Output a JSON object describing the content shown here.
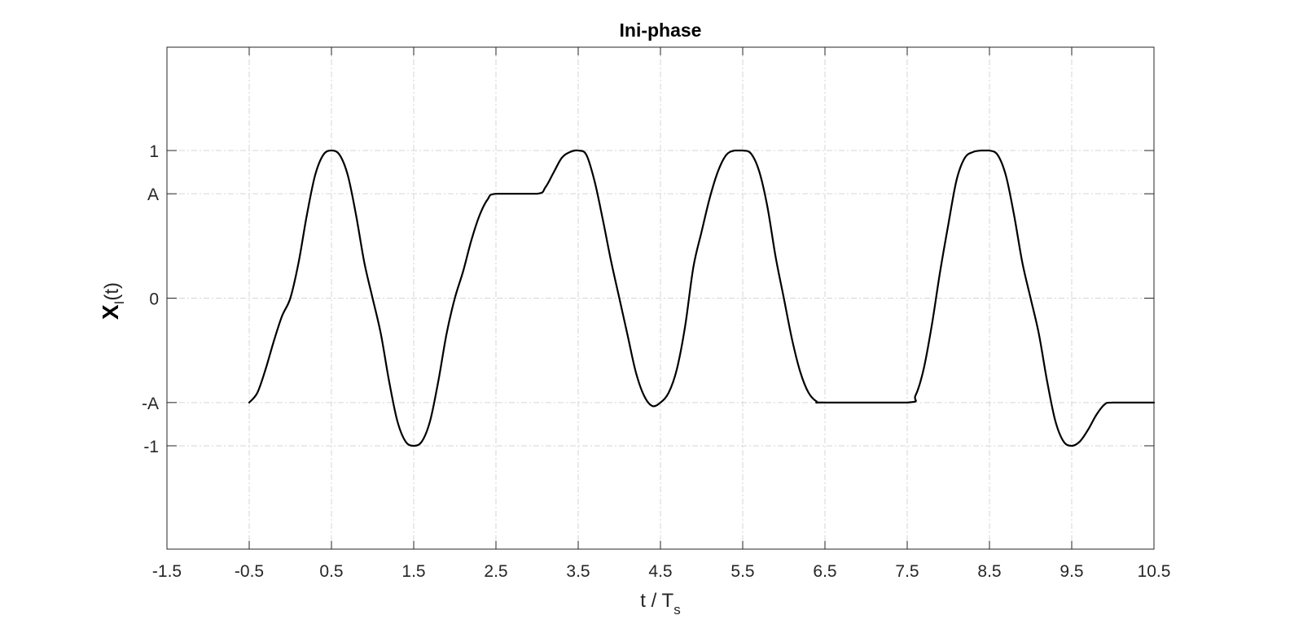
{
  "chart_data": {
    "type": "line",
    "title": "Ini-phase",
    "xlabel": {
      "main": "t / T",
      "sub": "s"
    },
    "ylabel": {
      "main": "X",
      "sub": "I",
      "suffix": "(t)"
    },
    "xlim": [
      -1.5,
      10.5
    ],
    "ylim": [
      -1.7,
      1.7
    ],
    "xticks": [
      -1.5,
      -0.5,
      0.5,
      1.5,
      2.5,
      3.5,
      4.5,
      5.5,
      6.5,
      7.5,
      8.5,
      9.5,
      10.5
    ],
    "xtick_labels": [
      "-1.5",
      "-0.5",
      "0.5",
      "1.5",
      "2.5",
      "3.5",
      "4.5",
      "5.5",
      "6.5",
      "7.5",
      "8.5",
      "9.5",
      "10.5"
    ],
    "yticks": [
      -1,
      -0.7071,
      0,
      0.7071,
      1
    ],
    "ytick_labels": [
      "-1",
      "-A",
      "0",
      "A",
      "1"
    ],
    "grid": true,
    "color": "#000000",
    "series": [
      {
        "x": [
          -0.5,
          -0.4,
          -0.3,
          -0.2,
          -0.1,
          0.0,
          0.1,
          0.2,
          0.3,
          0.4,
          0.5,
          0.6,
          0.7,
          0.8,
          0.9,
          1.0,
          1.1,
          1.2,
          1.3,
          1.4,
          1.5,
          1.6,
          1.7,
          1.8,
          1.9,
          2.0,
          2.1,
          2.2,
          2.3,
          2.4,
          2.5,
          3.0,
          3.1,
          3.2,
          3.3,
          3.4,
          3.5,
          3.6,
          3.7,
          3.8,
          3.9,
          4.0,
          4.1,
          4.2,
          4.3,
          4.4,
          4.5,
          4.6,
          4.7,
          4.8,
          4.9,
          5.0,
          5.1,
          5.2,
          5.3,
          5.4,
          5.5,
          5.6,
          5.7,
          5.8,
          5.9,
          6.0,
          6.1,
          6.2,
          6.3,
          6.4,
          6.5,
          7.5,
          7.6,
          7.7,
          7.8,
          7.9,
          8.0,
          8.1,
          8.2,
          8.3,
          8.4,
          8.5,
          8.6,
          8.7,
          8.8,
          8.9,
          9.0,
          9.1,
          9.2,
          9.3,
          9.4,
          9.5,
          9.6,
          9.7,
          9.8,
          9.9,
          10.0,
          10.5
        ],
        "y": [
          -0.7071,
          -0.64,
          -0.48,
          -0.29,
          -0.12,
          0.0,
          0.24,
          0.56,
          0.83,
          0.97,
          1.0,
          0.97,
          0.83,
          0.56,
          0.24,
          0.0,
          -0.24,
          -0.56,
          -0.83,
          -0.97,
          -1.0,
          -0.97,
          -0.83,
          -0.56,
          -0.24,
          0.0,
          0.18,
          0.39,
          0.56,
          0.67,
          0.7071,
          0.7071,
          0.75,
          0.85,
          0.95,
          0.99,
          1.0,
          0.97,
          0.79,
          0.53,
          0.25,
          0.0,
          -0.25,
          -0.5,
          -0.66,
          -0.73,
          -0.7071,
          -0.64,
          -0.48,
          -0.19,
          0.21,
          0.45,
          0.68,
          0.86,
          0.97,
          1.0,
          1.0,
          0.98,
          0.86,
          0.62,
          0.28,
          0.0,
          -0.28,
          -0.5,
          -0.64,
          -0.7,
          -0.7071,
          -0.7071,
          -0.66,
          -0.48,
          -0.18,
          0.18,
          0.5,
          0.8,
          0.95,
          0.99,
          1.0,
          1.0,
          0.97,
          0.83,
          0.56,
          0.24,
          0.0,
          -0.24,
          -0.56,
          -0.83,
          -0.97,
          -1.0,
          -0.97,
          -0.89,
          -0.79,
          -0.72,
          -0.7071,
          -0.7071
        ]
      }
    ]
  }
}
